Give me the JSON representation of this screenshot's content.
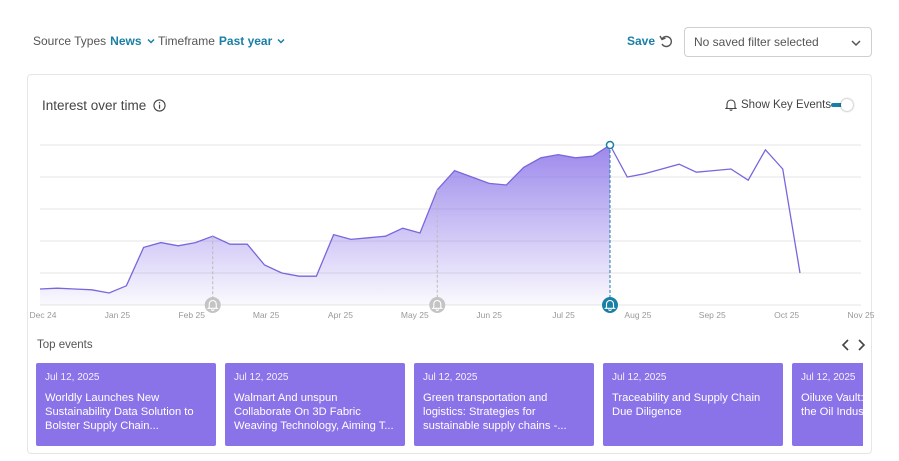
{
  "filters": {
    "source_types_label": "Source Types",
    "source_types_value": "News",
    "timeframe_label": "Timeframe",
    "timeframe_value": "Past year"
  },
  "toolbar": {
    "save_label": "Save",
    "saved_filter_value": "No saved filter selected"
  },
  "card": {
    "title": "Interest over time",
    "show_key_events_label": "Show Key Events",
    "show_key_events_on": true,
    "top_events_label": "Top events"
  },
  "colors": {
    "accent": "#1a7fa6",
    "line": "#7a66dd",
    "event_card": "#8a73e8",
    "marker_gray": "#c4c4c4"
  },
  "chart_data": {
    "type": "area",
    "xlabel": "",
    "ylabel": "",
    "grid": true,
    "x_ticks": [
      "Dec 24",
      "Jan 25",
      "Feb 25",
      "Mar 25",
      "Apr 25",
      "May 25",
      "Jun 25",
      "Jul 25",
      "Aug 25",
      "Sep 25",
      "Oct 25",
      "Nov 25"
    ],
    "values": [
      10,
      10.5,
      10,
      9.5,
      7.5,
      12,
      36,
      39,
      37,
      39,
      43,
      38,
      38,
      25,
      20,
      18,
      18,
      44,
      41,
      42,
      43,
      48,
      45,
      72,
      84,
      80,
      76,
      75,
      86,
      92,
      94,
      92,
      93,
      100,
      80,
      82,
      85,
      88,
      83,
      84,
      85,
      78,
      97,
      85,
      20
    ],
    "highlighted_index": 33,
    "highlighted_ratio": 0.658,
    "filled_until_index": 33,
    "ylim": [
      0,
      100
    ],
    "key_event_markers": [
      {
        "label": "Feb 25",
        "index": 10,
        "highlighted": false
      },
      {
        "label": "May 25",
        "index": 23,
        "highlighted": false
      },
      {
        "label": "Jul 25",
        "index": 33,
        "highlighted": true
      }
    ]
  },
  "events": [
    {
      "date": "Jul 12, 2025",
      "title": "Worldly Launches New Sustainability Data Solution to Bolster Supply Chain..."
    },
    {
      "date": "Jul 12, 2025",
      "title": "Walmart And unspun Collaborate On 3D Fabric Weaving Technology, Aiming T..."
    },
    {
      "date": "Jul 12, 2025",
      "title": "Green transportation and logistics: Strategies for sustainable supply chains -..."
    },
    {
      "date": "Jul 12, 2025",
      "title": "Traceability and Supply Chain Due Diligence"
    },
    {
      "date": "Jul 12, 2025",
      "title": "Oiluxe Vault: Blockchain Tech the Oil Indust..."
    }
  ]
}
